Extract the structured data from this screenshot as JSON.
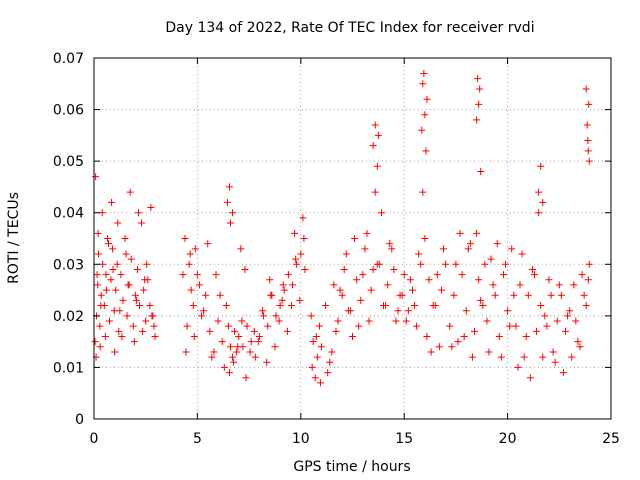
{
  "chart_data": {
    "type": "scatter",
    "title": "Day 134 of 2022, Rate Of TEC Index for receiver rvdi",
    "xlabel": "GPS time / hours",
    "ylabel": "ROTI / TECUs",
    "xlim": [
      0,
      25
    ],
    "ylim": [
      0,
      0.07
    ],
    "x_ticks": [
      "0",
      "5",
      "10",
      "15",
      "20",
      "25"
    ],
    "y_ticks": [
      "0",
      "0.01",
      "0.02",
      "0.03",
      "0.04",
      "0.05",
      "0.06",
      "0.07"
    ],
    "grid": true,
    "marker": "plus",
    "color": "#ff0000",
    "series": [
      {
        "x": [
          0.05,
          0.12,
          0.18,
          0.22,
          0.28,
          0.35,
          0.42,
          0.5,
          0.58,
          0.66,
          0.75,
          0.82,
          0.9,
          0.98,
          1.05,
          1.12,
          1.2,
          1.3,
          1.4,
          1.5,
          1.6,
          1.7,
          1.8,
          1.9,
          2.0,
          2.1,
          2.2,
          2.3,
          2.4,
          2.5,
          2.6,
          2.7,
          2.8,
          2.9,
          0.1,
          0.2,
          0.3,
          0.4,
          0.55,
          0.7,
          0.85,
          1.0,
          1.15,
          1.35,
          1.55,
          1.75,
          1.95,
          2.15,
          2.35,
          2.55,
          2.75,
          2.95,
          0.08,
          0.15,
          0.33,
          0.6,
          0.92,
          1.25,
          1.65,
          2.05,
          2.45,
          2.85,
          4.3,
          4.4,
          4.5,
          4.6,
          4.7,
          4.8,
          4.9,
          5.0,
          5.2,
          5.4,
          5.6,
          5.8,
          6.0,
          6.2,
          6.4,
          6.5,
          6.6,
          6.7,
          6.8,
          6.9,
          7.0,
          7.2,
          7.4,
          7.6,
          7.8,
          8.0,
          8.2,
          8.4,
          8.6,
          8.8,
          9.0,
          9.2,
          9.4,
          9.6,
          9.8,
          10.0,
          10.2,
          4.45,
          4.65,
          4.85,
          5.1,
          5.3,
          5.5,
          5.7,
          5.9,
          6.1,
          6.3,
          6.55,
          6.75,
          6.95,
          7.15,
          7.35,
          7.55,
          7.75,
          7.95,
          8.15,
          8.35,
          8.55,
          8.75,
          8.95,
          9.15,
          9.35,
          9.55,
          9.75,
          9.95,
          10.15,
          6.45,
          6.55,
          6.6,
          6.7,
          7.1,
          7.3,
          8.5,
          9.1,
          9.7,
          10.1,
          10.5,
          10.6,
          10.7,
          10.8,
          10.9,
          11.0,
          11.2,
          11.4,
          11.6,
          11.8,
          12.0,
          12.2,
          12.4,
          12.6,
          12.8,
          13.0,
          13.2,
          13.4,
          13.6,
          13.8,
          14.0,
          14.2,
          14.4,
          14.6,
          14.8,
          15.0,
          15.2,
          15.4,
          15.6,
          15.8,
          16.0,
          16.2,
          16.4,
          16.6,
          16.8,
          17.0,
          10.55,
          10.75,
          10.95,
          11.3,
          11.5,
          11.7,
          11.9,
          12.1,
          12.3,
          12.5,
          12.7,
          12.9,
          13.1,
          13.3,
          13.5,
          13.7,
          13.9,
          14.1,
          14.3,
          14.5,
          14.7,
          14.9,
          15.1,
          15.3,
          15.5,
          15.7,
          15.9,
          16.1,
          16.3,
          16.5,
          16.7,
          16.9,
          13.5,
          13.6,
          13.7,
          13.75,
          15.9,
          15.95,
          16.0,
          16.05,
          16.1,
          15.85,
          17.2,
          17.4,
          17.6,
          17.8,
          18.0,
          18.2,
          18.4,
          18.6,
          18.8,
          19.0,
          19.2,
          19.4,
          19.6,
          19.8,
          20.0,
          20.2,
          20.4,
          20.6,
          20.8,
          21.0,
          21.2,
          21.4,
          21.6,
          21.8,
          22.0,
          22.2,
          22.4,
          22.6,
          22.8,
          23.0,
          23.2,
          23.4,
          23.6,
          23.8,
          23.95,
          17.3,
          17.5,
          17.7,
          17.9,
          18.1,
          18.3,
          18.5,
          18.7,
          18.9,
          19.1,
          19.3,
          19.5,
          19.7,
          19.9,
          20.1,
          20.3,
          20.5,
          20.7,
          20.9,
          21.1,
          21.3,
          21.5,
          21.7,
          21.9,
          22.1,
          22.3,
          22.5,
          22.7,
          22.9,
          23.1,
          23.3,
          23.5,
          23.7,
          23.9,
          18.5,
          18.55,
          18.6,
          18.65,
          18.7,
          21.5,
          21.6,
          21.7,
          23.8,
          23.85,
          23.9,
          23.95,
          23.92,
          23.88
        ],
        "y": [
          0.015,
          0.02,
          0.026,
          0.032,
          0.018,
          0.024,
          0.03,
          0.022,
          0.028,
          0.035,
          0.019,
          0.027,
          0.033,
          0.021,
          0.025,
          0.03,
          0.017,
          0.028,
          0.023,
          0.035,
          0.02,
          0.026,
          0.031,
          0.018,
          0.024,
          0.029,
          0.022,
          0.038,
          0.025,
          0.019,
          0.027,
          0.022,
          0.02,
          0.018,
          0.012,
          0.036,
          0.014,
          0.04,
          0.016,
          0.034,
          0.042,
          0.013,
          0.038,
          0.016,
          0.032,
          0.044,
          0.015,
          0.04,
          0.017,
          0.03,
          0.041,
          0.016,
          0.047,
          0.028,
          0.022,
          0.025,
          0.029,
          0.021,
          0.026,
          0.023,
          0.027,
          0.02,
          0.028,
          0.035,
          0.018,
          0.03,
          0.025,
          0.022,
          0.033,
          0.028,
          0.02,
          0.024,
          0.017,
          0.013,
          0.019,
          0.015,
          0.022,
          0.018,
          0.014,
          0.012,
          0.017,
          0.013,
          0.016,
          0.014,
          0.018,
          0.015,
          0.012,
          0.016,
          0.02,
          0.018,
          0.024,
          0.02,
          0.022,
          0.025,
          0.028,
          0.026,
          0.03,
          0.032,
          0.029,
          0.013,
          0.032,
          0.016,
          0.026,
          0.021,
          0.034,
          0.012,
          0.028,
          0.024,
          0.01,
          0.009,
          0.011,
          0.014,
          0.019,
          0.008,
          0.013,
          0.017,
          0.015,
          0.021,
          0.011,
          0.024,
          0.014,
          0.019,
          0.026,
          0.017,
          0.022,
          0.031,
          0.023,
          0.035,
          0.042,
          0.045,
          0.038,
          0.04,
          0.033,
          0.029,
          0.027,
          0.023,
          0.036,
          0.039,
          0.02,
          0.015,
          0.008,
          0.012,
          0.018,
          0.014,
          0.022,
          0.011,
          0.026,
          0.019,
          0.024,
          0.032,
          0.021,
          0.035,
          0.018,
          0.028,
          0.036,
          0.025,
          0.044,
          0.03,
          0.022,
          0.026,
          0.033,
          0.019,
          0.024,
          0.028,
          0.021,
          0.025,
          0.018,
          0.03,
          0.035,
          0.027,
          0.022,
          0.028,
          0.025,
          0.03,
          0.01,
          0.016,
          0.007,
          0.009,
          0.013,
          0.017,
          0.025,
          0.029,
          0.021,
          0.016,
          0.027,
          0.023,
          0.033,
          0.019,
          0.029,
          0.03,
          0.04,
          0.022,
          0.034,
          0.029,
          0.021,
          0.024,
          0.019,
          0.027,
          0.022,
          0.032,
          0.044,
          0.016,
          0.013,
          0.022,
          0.014,
          0.033,
          0.053,
          0.057,
          0.049,
          0.055,
          0.065,
          0.067,
          0.059,
          0.052,
          0.062,
          0.056,
          0.018,
          0.024,
          0.015,
          0.028,
          0.021,
          0.034,
          0.017,
          0.027,
          0.022,
          0.019,
          0.031,
          0.024,
          0.016,
          0.028,
          0.021,
          0.033,
          0.018,
          0.026,
          0.012,
          0.024,
          0.029,
          0.017,
          0.022,
          0.02,
          0.027,
          0.013,
          0.019,
          0.024,
          0.017,
          0.021,
          0.026,
          0.015,
          0.028,
          0.022,
          0.03,
          0.014,
          0.03,
          0.036,
          0.016,
          0.033,
          0.012,
          0.036,
          0.023,
          0.03,
          0.013,
          0.026,
          0.034,
          0.012,
          0.03,
          0.018,
          0.024,
          0.01,
          0.032,
          0.016,
          0.008,
          0.028,
          0.04,
          0.012,
          0.018,
          0.024,
          0.011,
          0.026,
          0.009,
          0.02,
          0.012,
          0.019,
          0.014,
          0.024,
          0.027,
          0.058,
          0.066,
          0.061,
          0.064,
          0.048,
          0.044,
          0.049,
          0.042,
          0.064,
          0.057,
          0.052,
          0.05,
          0.061,
          0.054
        ]
      }
    ]
  }
}
